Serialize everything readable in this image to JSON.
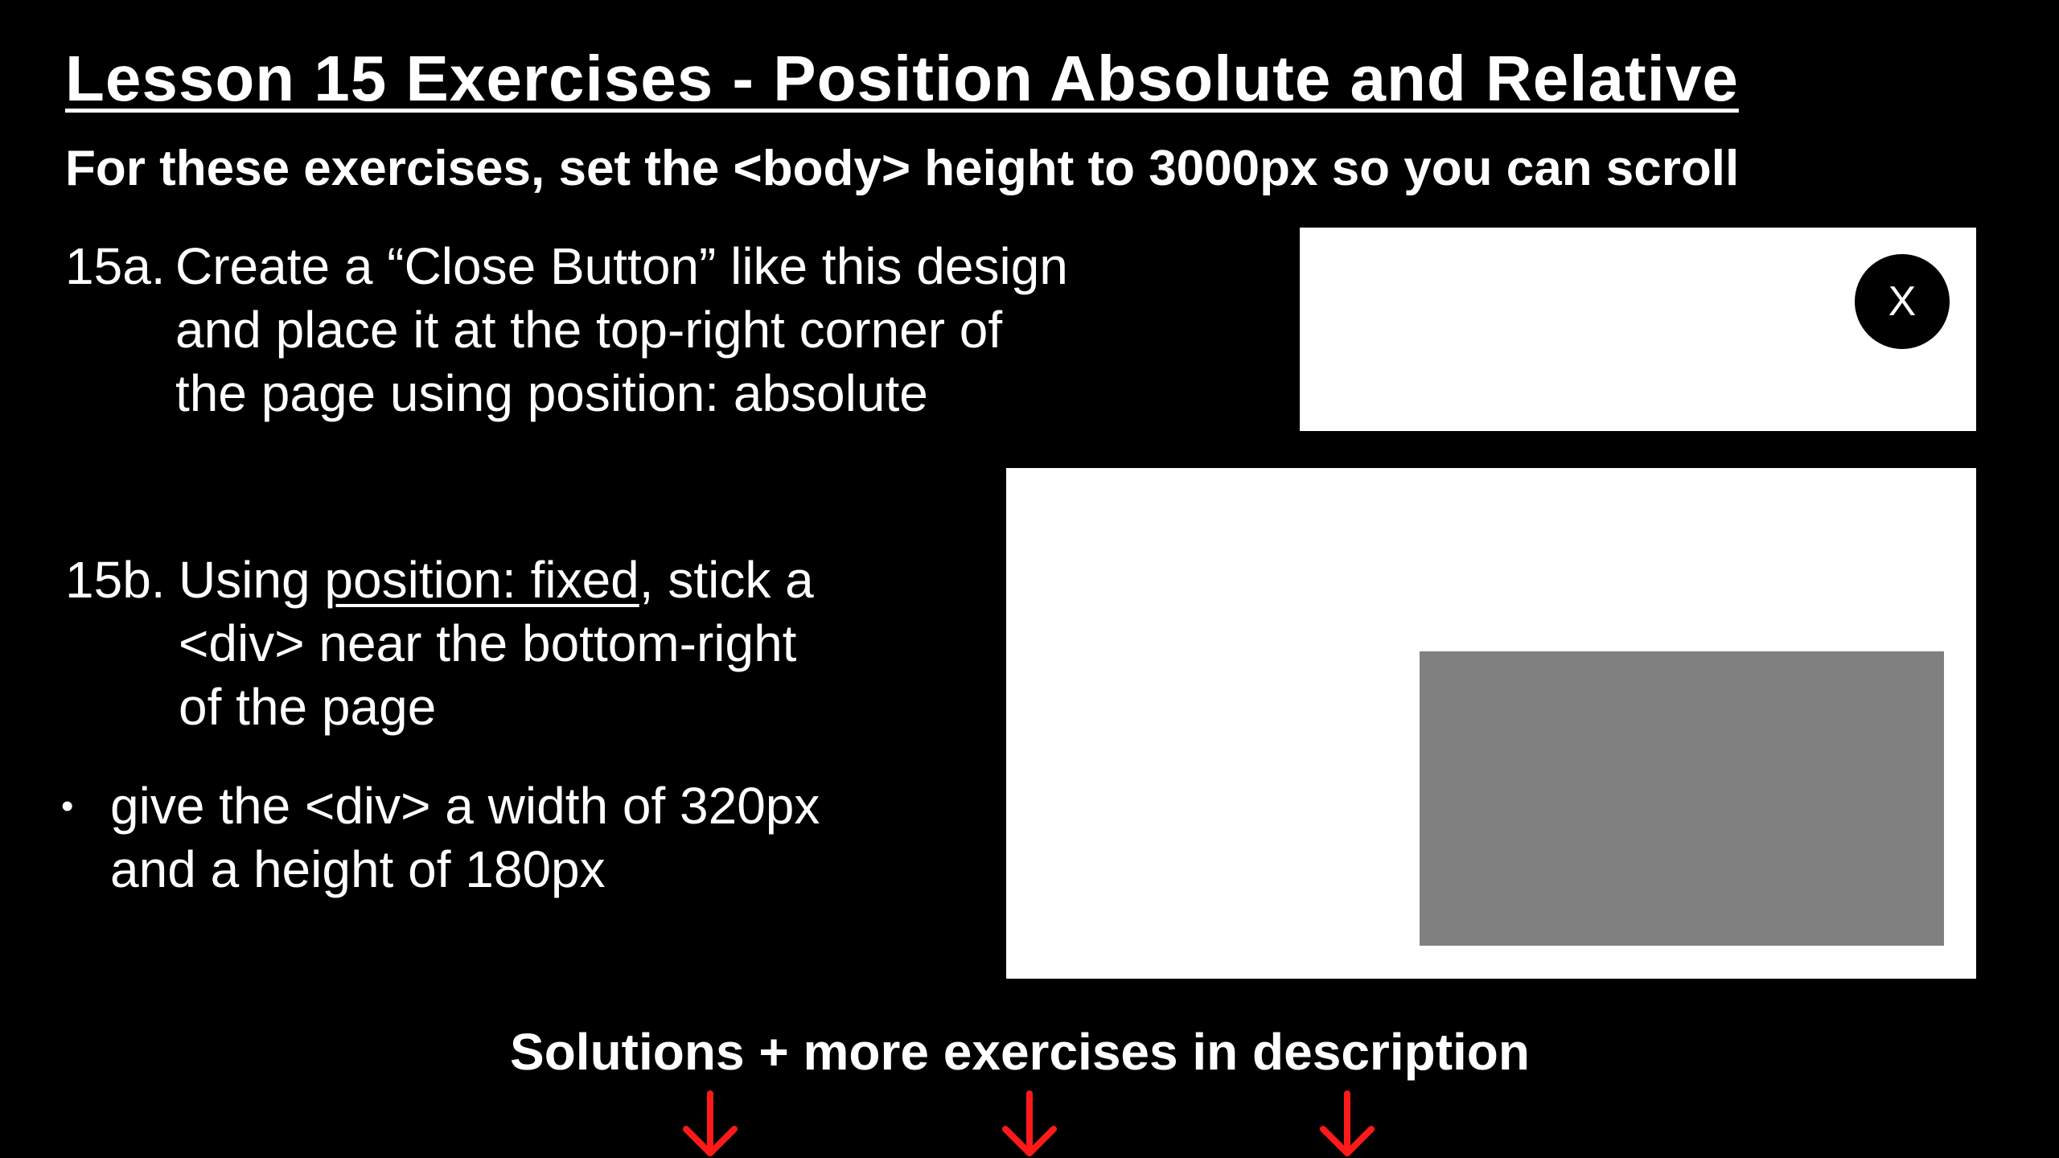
{
  "title": "Lesson 15 Exercises - Position Absolute and Relative",
  "subtitle": "For these exercises, set the <body> height to 3000px so you can scroll",
  "exercise_a": {
    "number": "15a.",
    "lines": [
      "Create a “Close Button” like this design",
      "and place it at the top-right corner of",
      "the page using position: absolute"
    ],
    "demo_button_label": "X"
  },
  "exercise_b": {
    "number": "15b.",
    "line1_prefix": "Using ",
    "line1_underlined": "position: fixed",
    "line1_suffix": ", stick a",
    "lines": [
      "<div> near the bottom-right",
      "of the page"
    ],
    "bullet_symbol": "•",
    "bullet_lines": [
      "give the <div> a width of 320px",
      "and a height of 180px"
    ]
  },
  "footer": {
    "text": "Solutions + more exercises in description",
    "arrow_count": 3
  },
  "colors": {
    "background": "#000000",
    "text": "#ffffff",
    "panel": "#ffffff",
    "fixed_box": "#808080",
    "arrow": "#ff1a1a"
  },
  "icons": [
    "arrow-down-icon",
    "arrow-down-icon",
    "arrow-down-icon"
  ]
}
